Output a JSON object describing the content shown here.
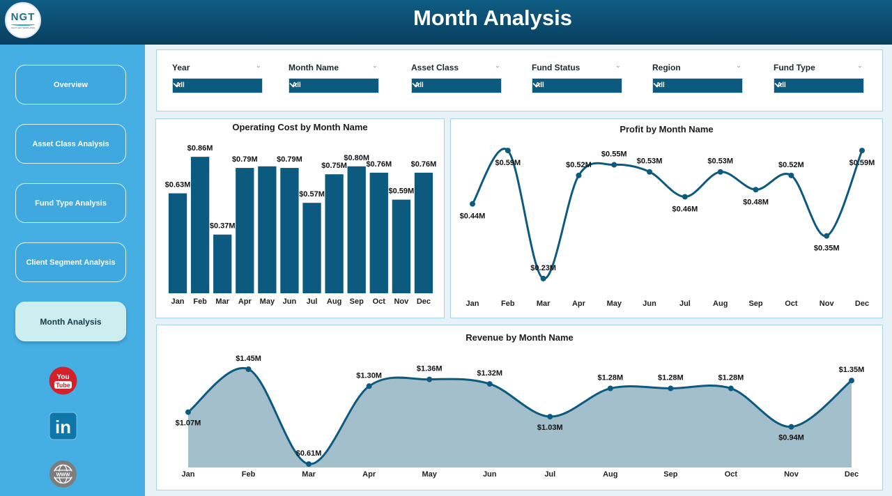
{
  "header": {
    "title": "Month Analysis",
    "logo_text": "NGT",
    "logo_subtext": "NEXT GEN TEMPLATES"
  },
  "sidebar": {
    "items": [
      {
        "label": "Overview",
        "active": false
      },
      {
        "label": "Asset Class Analysis",
        "active": false
      },
      {
        "label": "Fund Type Analysis",
        "active": false
      },
      {
        "label": "Client Segment Analysis",
        "active": false
      },
      {
        "label": "Month Analysis",
        "active": true
      }
    ],
    "social": [
      {
        "icon": "youtube-icon",
        "line1": "You",
        "line2": "Tube"
      },
      {
        "icon": "linkedin-icon",
        "text": "in"
      },
      {
        "icon": "website-icon",
        "text": "WWW"
      }
    ]
  },
  "filters": [
    {
      "label": "Year",
      "value": "All"
    },
    {
      "label": "Month Name",
      "value": "All"
    },
    {
      "label": "Asset Class",
      "value": "All"
    },
    {
      "label": "Fund Status",
      "value": "All"
    },
    {
      "label": "Region",
      "value": "All"
    },
    {
      "label": "Fund Type",
      "value": "All"
    }
  ],
  "colors": {
    "primary": "#0d5a80",
    "area_fill": "#a3bfcc",
    "sidebar": "#45aee2",
    "header": "#0b4a6f"
  },
  "chart_data": [
    {
      "id": "operating_cost",
      "type": "bar",
      "title": "Operating Cost by Month Name",
      "categories": [
        "Jan",
        "Feb",
        "Mar",
        "Apr",
        "May",
        "Jun",
        "Jul",
        "Aug",
        "Sep",
        "Oct",
        "Nov",
        "Dec"
      ],
      "values": [
        0.63,
        0.86,
        0.37,
        0.79,
        0.8,
        0.79,
        0.57,
        0.75,
        0.8,
        0.76,
        0.59,
        0.76
      ],
      "labels": [
        "$0.63M",
        "$0.86M",
        "$0.37M",
        "$0.79M",
        "",
        "$0.79M",
        "$0.57M",
        "$0.75M",
        "$0.80M",
        "$0.76M",
        "$0.59M",
        "$0.76M"
      ],
      "ylim": [
        0,
        0.9
      ]
    },
    {
      "id": "profit",
      "type": "line",
      "title": "Profit by Month Name",
      "categories": [
        "Jan",
        "Feb",
        "Mar",
        "Apr",
        "May",
        "Jun",
        "Jul",
        "Aug",
        "Sep",
        "Oct",
        "Nov",
        "Dec"
      ],
      "values": [
        0.44,
        0.59,
        0.23,
        0.52,
        0.55,
        0.53,
        0.46,
        0.53,
        0.48,
        0.52,
        0.35,
        0.59
      ],
      "labels": [
        "$0.44M",
        "$0.59M",
        "$0.23M",
        "$0.52M",
        "$0.55M",
        "$0.53M",
        "$0.46M",
        "$0.53M",
        "$0.48M",
        "$0.52M",
        "$0.35M",
        "$0.59M"
      ],
      "label_pos": [
        "below",
        "below",
        "above",
        "above",
        "above",
        "above",
        "below",
        "above",
        "below",
        "above",
        "below",
        "below"
      ],
      "ylim": [
        0.22,
        0.6
      ]
    },
    {
      "id": "revenue",
      "type": "area",
      "title": "Revenue by Month Name",
      "categories": [
        "Jan",
        "Feb",
        "Mar",
        "Apr",
        "May",
        "Jun",
        "Jul",
        "Aug",
        "Sep",
        "Oct",
        "Nov",
        "Dec"
      ],
      "values": [
        1.07,
        1.45,
        0.61,
        1.3,
        1.36,
        1.32,
        1.03,
        1.28,
        1.28,
        1.28,
        0.94,
        1.35
      ],
      "labels": [
        "$1.07M",
        "$1.45M",
        "$0.61M",
        "$1.30M",
        "$1.36M",
        "$1.32M",
        "$1.03M",
        "$1.28M",
        "$1.28M",
        "$1.28M",
        "$0.94M",
        "$1.35M"
      ],
      "label_pos": [
        "below",
        "above",
        "above",
        "above",
        "above",
        "above",
        "below",
        "above",
        "above",
        "above",
        "below",
        "above"
      ],
      "ylim": [
        0.58,
        1.45
      ]
    }
  ]
}
